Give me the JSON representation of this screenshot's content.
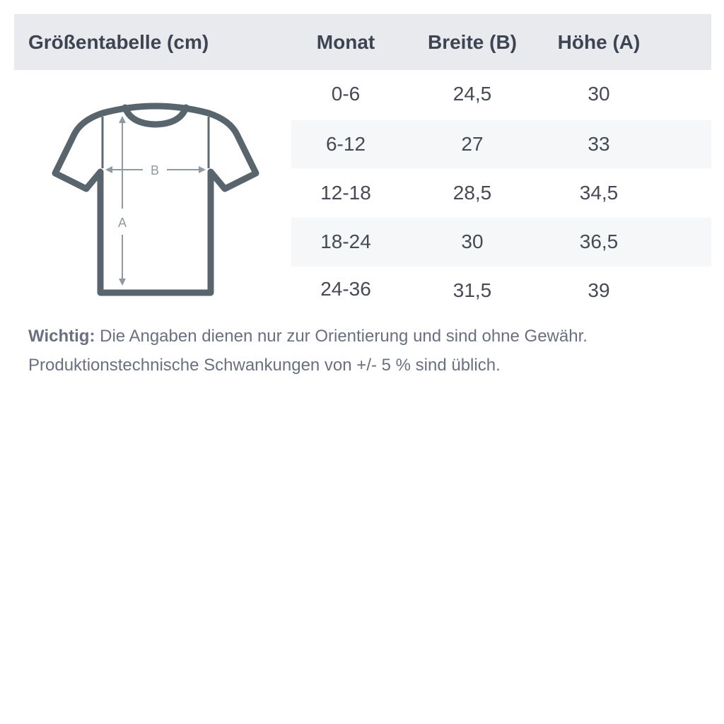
{
  "table": {
    "title": "Größentabelle (cm)",
    "columns": [
      "Monat",
      "Breite (B)",
      "Höhe (A)"
    ],
    "rows": [
      [
        "0-6",
        "24,5",
        "30"
      ],
      [
        "6-12",
        "27",
        "33"
      ],
      [
        "12-18",
        "28,5",
        "34,5"
      ],
      [
        "18-24",
        "30",
        "36,5"
      ],
      [
        "24-36",
        "31,5",
        "39"
      ]
    ]
  },
  "diagram": {
    "label_width": "B",
    "label_height": "A",
    "icon": "tshirt-measurement-icon"
  },
  "note": {
    "label": "Wichtig:",
    "line1": " Die Angaben dienen nur zur Orientierung und sind ohne Gewähr.",
    "line2": "Produktionstechnische Schwankungen von +/- 5 % sind üblich."
  },
  "colors": {
    "header_bg": "#e9eaee",
    "shirt": "#58656d",
    "arrows": "#8e99a3"
  }
}
